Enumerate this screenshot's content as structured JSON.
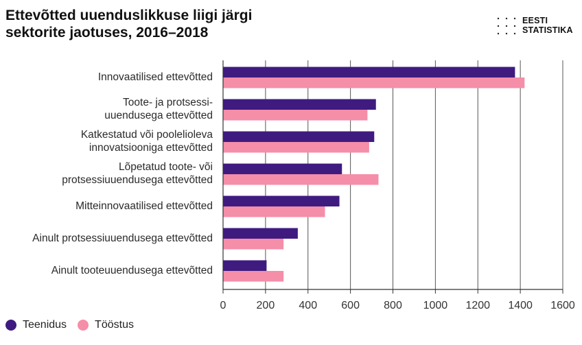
{
  "title": {
    "line1": "Ettevõtted uuenduslikkuse liigi järgi",
    "line2": "sektorite jaotuses, 2016–2018"
  },
  "logo": {
    "line1": "EESTI",
    "line2": "STATISTIKA"
  },
  "colors": {
    "teenidus": "#3f1b80",
    "toostus": "#f58ea8",
    "grid": "#555555",
    "axis": "#333333"
  },
  "chart_data": {
    "type": "bar",
    "orientation": "horizontal",
    "title": "Ettevõtted uuenduslikkuse liigi järgi sektorite jaotuses, 2016–2018",
    "xlabel": "",
    "ylabel": "",
    "xlim": [
      0,
      1600
    ],
    "xticks": [
      0,
      200,
      400,
      600,
      800,
      1000,
      1200,
      1400,
      1600
    ],
    "grid": true,
    "legend_position": "bottom-left",
    "categories": [
      [
        "Innovaatilised ettevõtted"
      ],
      [
        "Toote- ja protsessi-",
        "uuendusega ettevõtted"
      ],
      [
        "Katkestatud või poolelioleva",
        "innovatsiooniga ettevõtted"
      ],
      [
        "Lõpetatud toote- või",
        "protsessiuuendusega ettevõtted"
      ],
      [
        "Mitteinnovaatilised ettevõtted"
      ],
      [
        "Ainult protsessiuuendusega ettevõtted"
      ],
      [
        "Ainult tooteuuendusega ettevõtted"
      ]
    ],
    "series": [
      {
        "name": "Teenidus",
        "color": "#3f1b80",
        "values": [
          1375,
          720,
          712,
          560,
          548,
          352,
          205
        ]
      },
      {
        "name": "Tööstus",
        "color": "#f58ea8",
        "values": [
          1420,
          680,
          688,
          732,
          480,
          285,
          285
        ]
      }
    ]
  }
}
